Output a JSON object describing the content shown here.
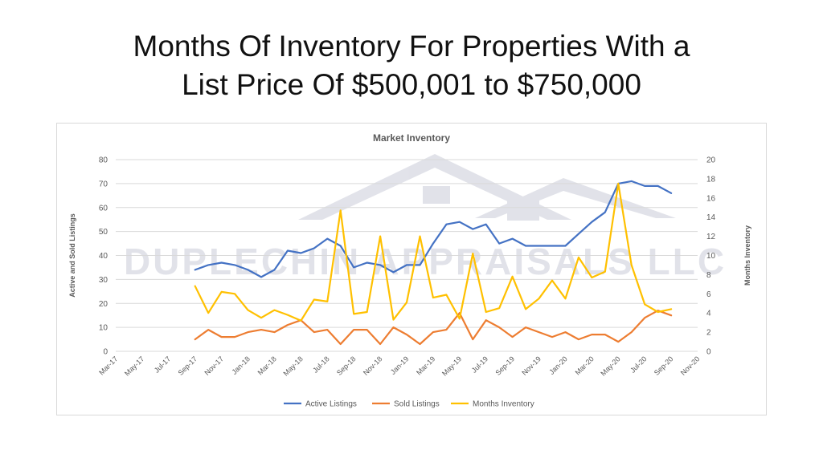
{
  "slide_title_line1": "Months Of Inventory For Properties With a",
  "slide_title_line2": "List Price Of $500,001 to $750,000",
  "watermark": "DUPLECHIN APPRAISALS LLC",
  "colors": {
    "active": "#4472c4",
    "sold": "#ed7d31",
    "months": "#ffc000",
    "grid": "#d9d9d9",
    "text": "#595959"
  },
  "chart_data": {
    "type": "line",
    "title": "Market Inventory",
    "ylabel": "Active and Sold Listings",
    "y2label": "Months Inventory",
    "ylim": [
      0,
      80
    ],
    "y2lim": [
      0,
      20
    ],
    "yticks": [
      0,
      10,
      20,
      30,
      40,
      50,
      60,
      70,
      80
    ],
    "y2ticks": [
      0,
      2,
      4,
      6,
      8,
      10,
      12,
      14,
      16,
      18,
      20
    ],
    "x_tick_labels": [
      "Mar-17",
      "May-17",
      "Jul-17",
      "Sep-17",
      "Nov-17",
      "Jan-18",
      "Mar-18",
      "May-18",
      "Jul-18",
      "Sep-18",
      "Nov-18",
      "Jan-19",
      "Mar-19",
      "May-19",
      "Jul-19",
      "Sep-19",
      "Nov-19",
      "Jan-20",
      "Mar-20",
      "May-20",
      "Jul-20",
      "Sep-20",
      "Nov-20"
    ],
    "x_start": "Mar-17",
    "x_end": "Nov-20",
    "x": [
      "Sep-17",
      "Oct-17",
      "Nov-17",
      "Dec-17",
      "Jan-18",
      "Feb-18",
      "Mar-18",
      "Apr-18",
      "May-18",
      "Jun-18",
      "Jul-18",
      "Aug-18",
      "Sep-18",
      "Oct-18",
      "Nov-18",
      "Dec-18",
      "Jan-19",
      "Feb-19",
      "Mar-19",
      "Apr-19",
      "May-19",
      "Jun-19",
      "Jul-19",
      "Aug-19",
      "Sep-19",
      "Oct-19",
      "Nov-19",
      "Dec-19",
      "Jan-20",
      "Feb-20",
      "Mar-20",
      "Apr-20",
      "May-20",
      "Jun-20",
      "Jul-20",
      "Aug-20",
      "Sep-20"
    ],
    "legend_position": "bottom",
    "grid": true,
    "series": [
      {
        "name": "Active Listings",
        "axis": "left",
        "values": [
          34,
          36,
          37,
          36,
          34,
          31,
          34,
          42,
          41,
          43,
          47,
          44,
          35,
          37,
          36,
          33,
          36,
          36,
          45,
          53,
          54,
          51,
          53,
          45,
          47,
          44,
          44,
          44,
          44,
          49,
          54,
          58,
          70,
          71,
          69,
          69,
          66
        ]
      },
      {
        "name": "Sold Listings",
        "axis": "left",
        "values": [
          5,
          9,
          6,
          6,
          8,
          9,
          8,
          11,
          13,
          8,
          9,
          3,
          9,
          9,
          3,
          10,
          7,
          3,
          8,
          9,
          16,
          5,
          13,
          10,
          6,
          10,
          8,
          6,
          8,
          5,
          7,
          7,
          4,
          8,
          14,
          17,
          15
        ]
      },
      {
        "name": "Months Inventory",
        "axis": "right",
        "values": [
          6.8,
          4.0,
          6.2,
          6.0,
          4.3,
          3.5,
          4.3,
          3.8,
          3.2,
          5.4,
          5.2,
          14.7,
          3.9,
          4.1,
          12.0,
          3.3,
          5.1,
          12.0,
          5.6,
          5.9,
          3.4,
          10.2,
          4.1,
          4.5,
          7.8,
          4.4,
          5.5,
          7.4,
          5.5,
          9.8,
          7.7,
          8.3,
          17.5,
          9.0,
          4.9,
          4.1,
          4.4
        ]
      }
    ]
  }
}
